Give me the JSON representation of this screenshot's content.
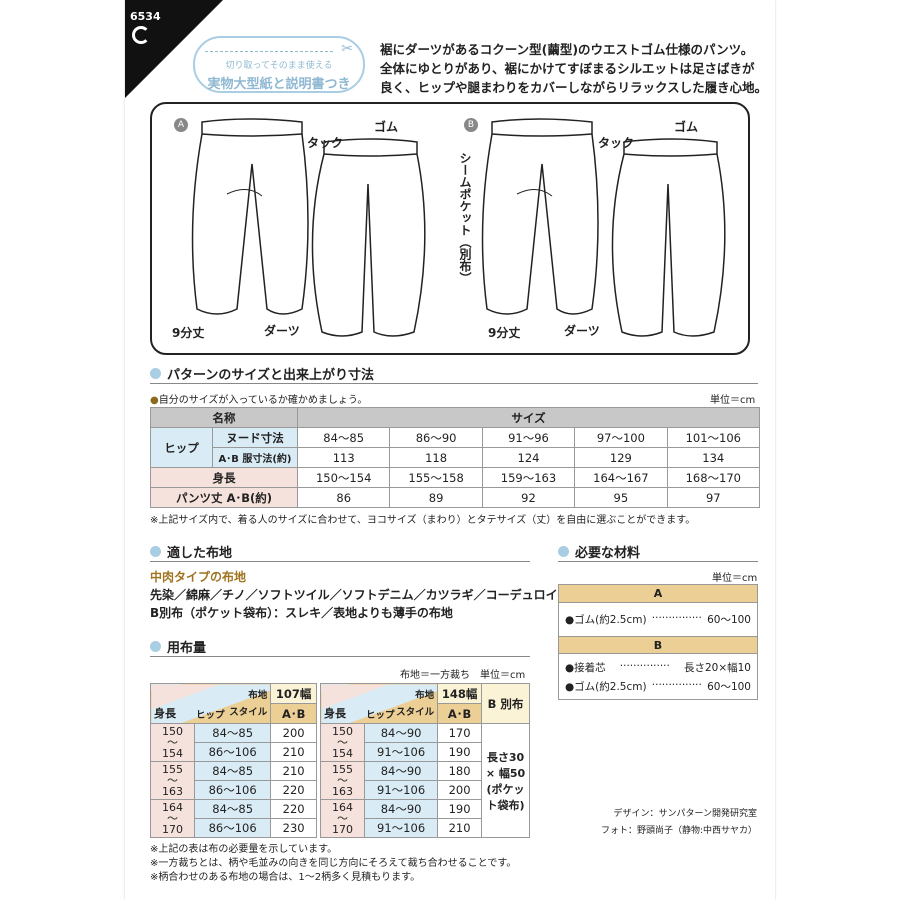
{
  "header": {
    "pattern_number": "6534",
    "badge_small": "切り取ってそのまま使える",
    "badge_main": "実物大型紙と説明書つき",
    "intro": [
      "裾にダーツがあるコクーン型(繭型)のウエストゴム仕様のパンツ。",
      "全体にゆとりがあり、裾にかけてすぼまるシルエットは足さばきが",
      "良く、ヒップや腿まわりをカバーしながらリラックスした履き心地。"
    ]
  },
  "illustration": {
    "a_mark": "A",
    "b_mark": "B",
    "tuck": "タック",
    "gom": "ゴム",
    "length": "9分丈",
    "dart": "ダーツ",
    "seam_pocket": "シームポケット（別布）"
  },
  "size_section": {
    "title": "パターンのサイズと出来上がり寸法",
    "note": "自分のサイズが入っているか確かめましょう。",
    "unit": "単位＝cm",
    "col_name": "名称",
    "col_size": "サイズ",
    "hip": "ヒップ",
    "rows": [
      {
        "label": "ヌード寸法",
        "values": [
          "84〜85",
          "86〜90",
          "91〜96",
          "97〜100",
          "101〜106"
        ]
      },
      {
        "label": "A･B 服寸法(約)",
        "values": [
          "113",
          "118",
          "124",
          "129",
          "134"
        ]
      },
      {
        "label": "身長",
        "values": [
          "150〜154",
          "155〜158",
          "159〜163",
          "164〜167",
          "168〜170"
        ]
      },
      {
        "label": "パンツ丈 A･B(約)",
        "values": [
          "86",
          "89",
          "92",
          "95",
          "97"
        ]
      }
    ],
    "footnote": "※上記サイズ内で、着る人のサイズに合わせて、ヨコサイズ（まわり）とタテサイズ（丈）を自由に選ぶことができます。"
  },
  "fabric_section": {
    "title": "適した布地",
    "subtitle": "中肉タイプの布地",
    "line1": "先染／綿麻／チノ／ソフトツイル／ソフトデニム／カツラギ／コーデュロイ",
    "line2": "B別布（ポケット袋布）：スレキ／表地よりも薄手の布地"
  },
  "yardage": {
    "title": "用布量",
    "unit": "布地＝一方裁ち　単位＝cm",
    "h_fabric": "布地",
    "h_style": "スタイル",
    "h_height": "身長",
    "h_hip": "ヒップ",
    "style": "A･B",
    "b_extra": "B 別布",
    "b_extra_value": "長さ30 × 幅50 (ポケット袋布)",
    "tables": [
      {
        "width": "107幅",
        "groups": [
          {
            "height": "150\n〜\n154",
            "rows": [
              [
                "84〜85",
                "200"
              ],
              [
                "86〜106",
                "210"
              ]
            ]
          },
          {
            "height": "155\n〜\n163",
            "rows": [
              [
                "84〜85",
                "210"
              ],
              [
                "86〜106",
                "220"
              ]
            ]
          },
          {
            "height": "164\n〜\n170",
            "rows": [
              [
                "84〜85",
                "220"
              ],
              [
                "86〜106",
                "230"
              ]
            ]
          }
        ]
      },
      {
        "width": "148幅",
        "groups": [
          {
            "height": "150\n〜\n154",
            "rows": [
              [
                "84〜90",
                "170"
              ],
              [
                "91〜106",
                "190"
              ]
            ]
          },
          {
            "height": "155\n〜\n163",
            "rows": [
              [
                "84〜90",
                "180"
              ],
              [
                "91〜106",
                "200"
              ]
            ]
          },
          {
            "height": "164\n〜\n170",
            "rows": [
              [
                "84〜90",
                "190"
              ],
              [
                "91〜106",
                "210"
              ]
            ]
          }
        ]
      }
    ],
    "notes": [
      "※上記の表は布の必要量を示しています。",
      "※一方裁ちとは、柄や毛並みの向きを同じ方向にそろえて裁ち合わせることです。",
      "※柄合わせのある布地の場合は、1〜2柄多く見積もります。"
    ]
  },
  "materials": {
    "title": "必要な材料",
    "unit": "単位＝cm",
    "a_label": "A",
    "b_label": "B",
    "a_items": [
      {
        "name": "●ゴム(約2.5cm)",
        "dots": "···············",
        "value": "60〜100"
      }
    ],
    "b_items": [
      {
        "name": "●接着芯",
        "dots": "···············",
        "value": "長さ20×幅10"
      },
      {
        "name": "●ゴム(約2.5cm)",
        "dots": "···············",
        "value": "60〜100"
      }
    ]
  },
  "credits": {
    "design": "デザイン：サンパターン開発研究室",
    "photo": "フォト：野頭尚子（静物:中西サヤカ）"
  },
  "colors": {
    "header_blue": "#a9cde3",
    "tan": "#eccf95",
    "pink": "#f6e2dc",
    "light_blue": "#d9ecf6"
  }
}
